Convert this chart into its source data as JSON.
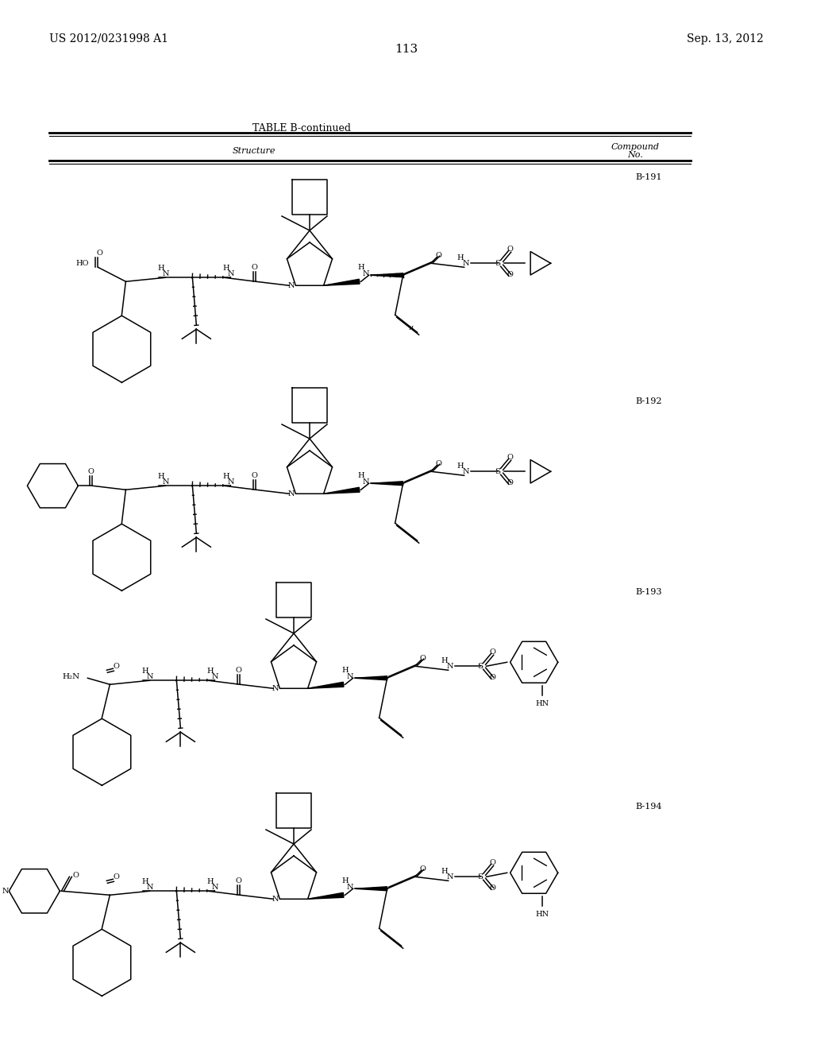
{
  "background_color": "#ffffff",
  "page_number": "113",
  "patent_number": "US 2012/0231998 A1",
  "patent_date": "Sep. 13, 2012",
  "table_title": "TABLE B-continued",
  "col_structure": "Structure",
  "col_compound_1": "Compound",
  "col_compound_2": "No.",
  "compounds": [
    "B-191",
    "B-192",
    "B-193",
    "B-194"
  ],
  "text_color": "#000000"
}
